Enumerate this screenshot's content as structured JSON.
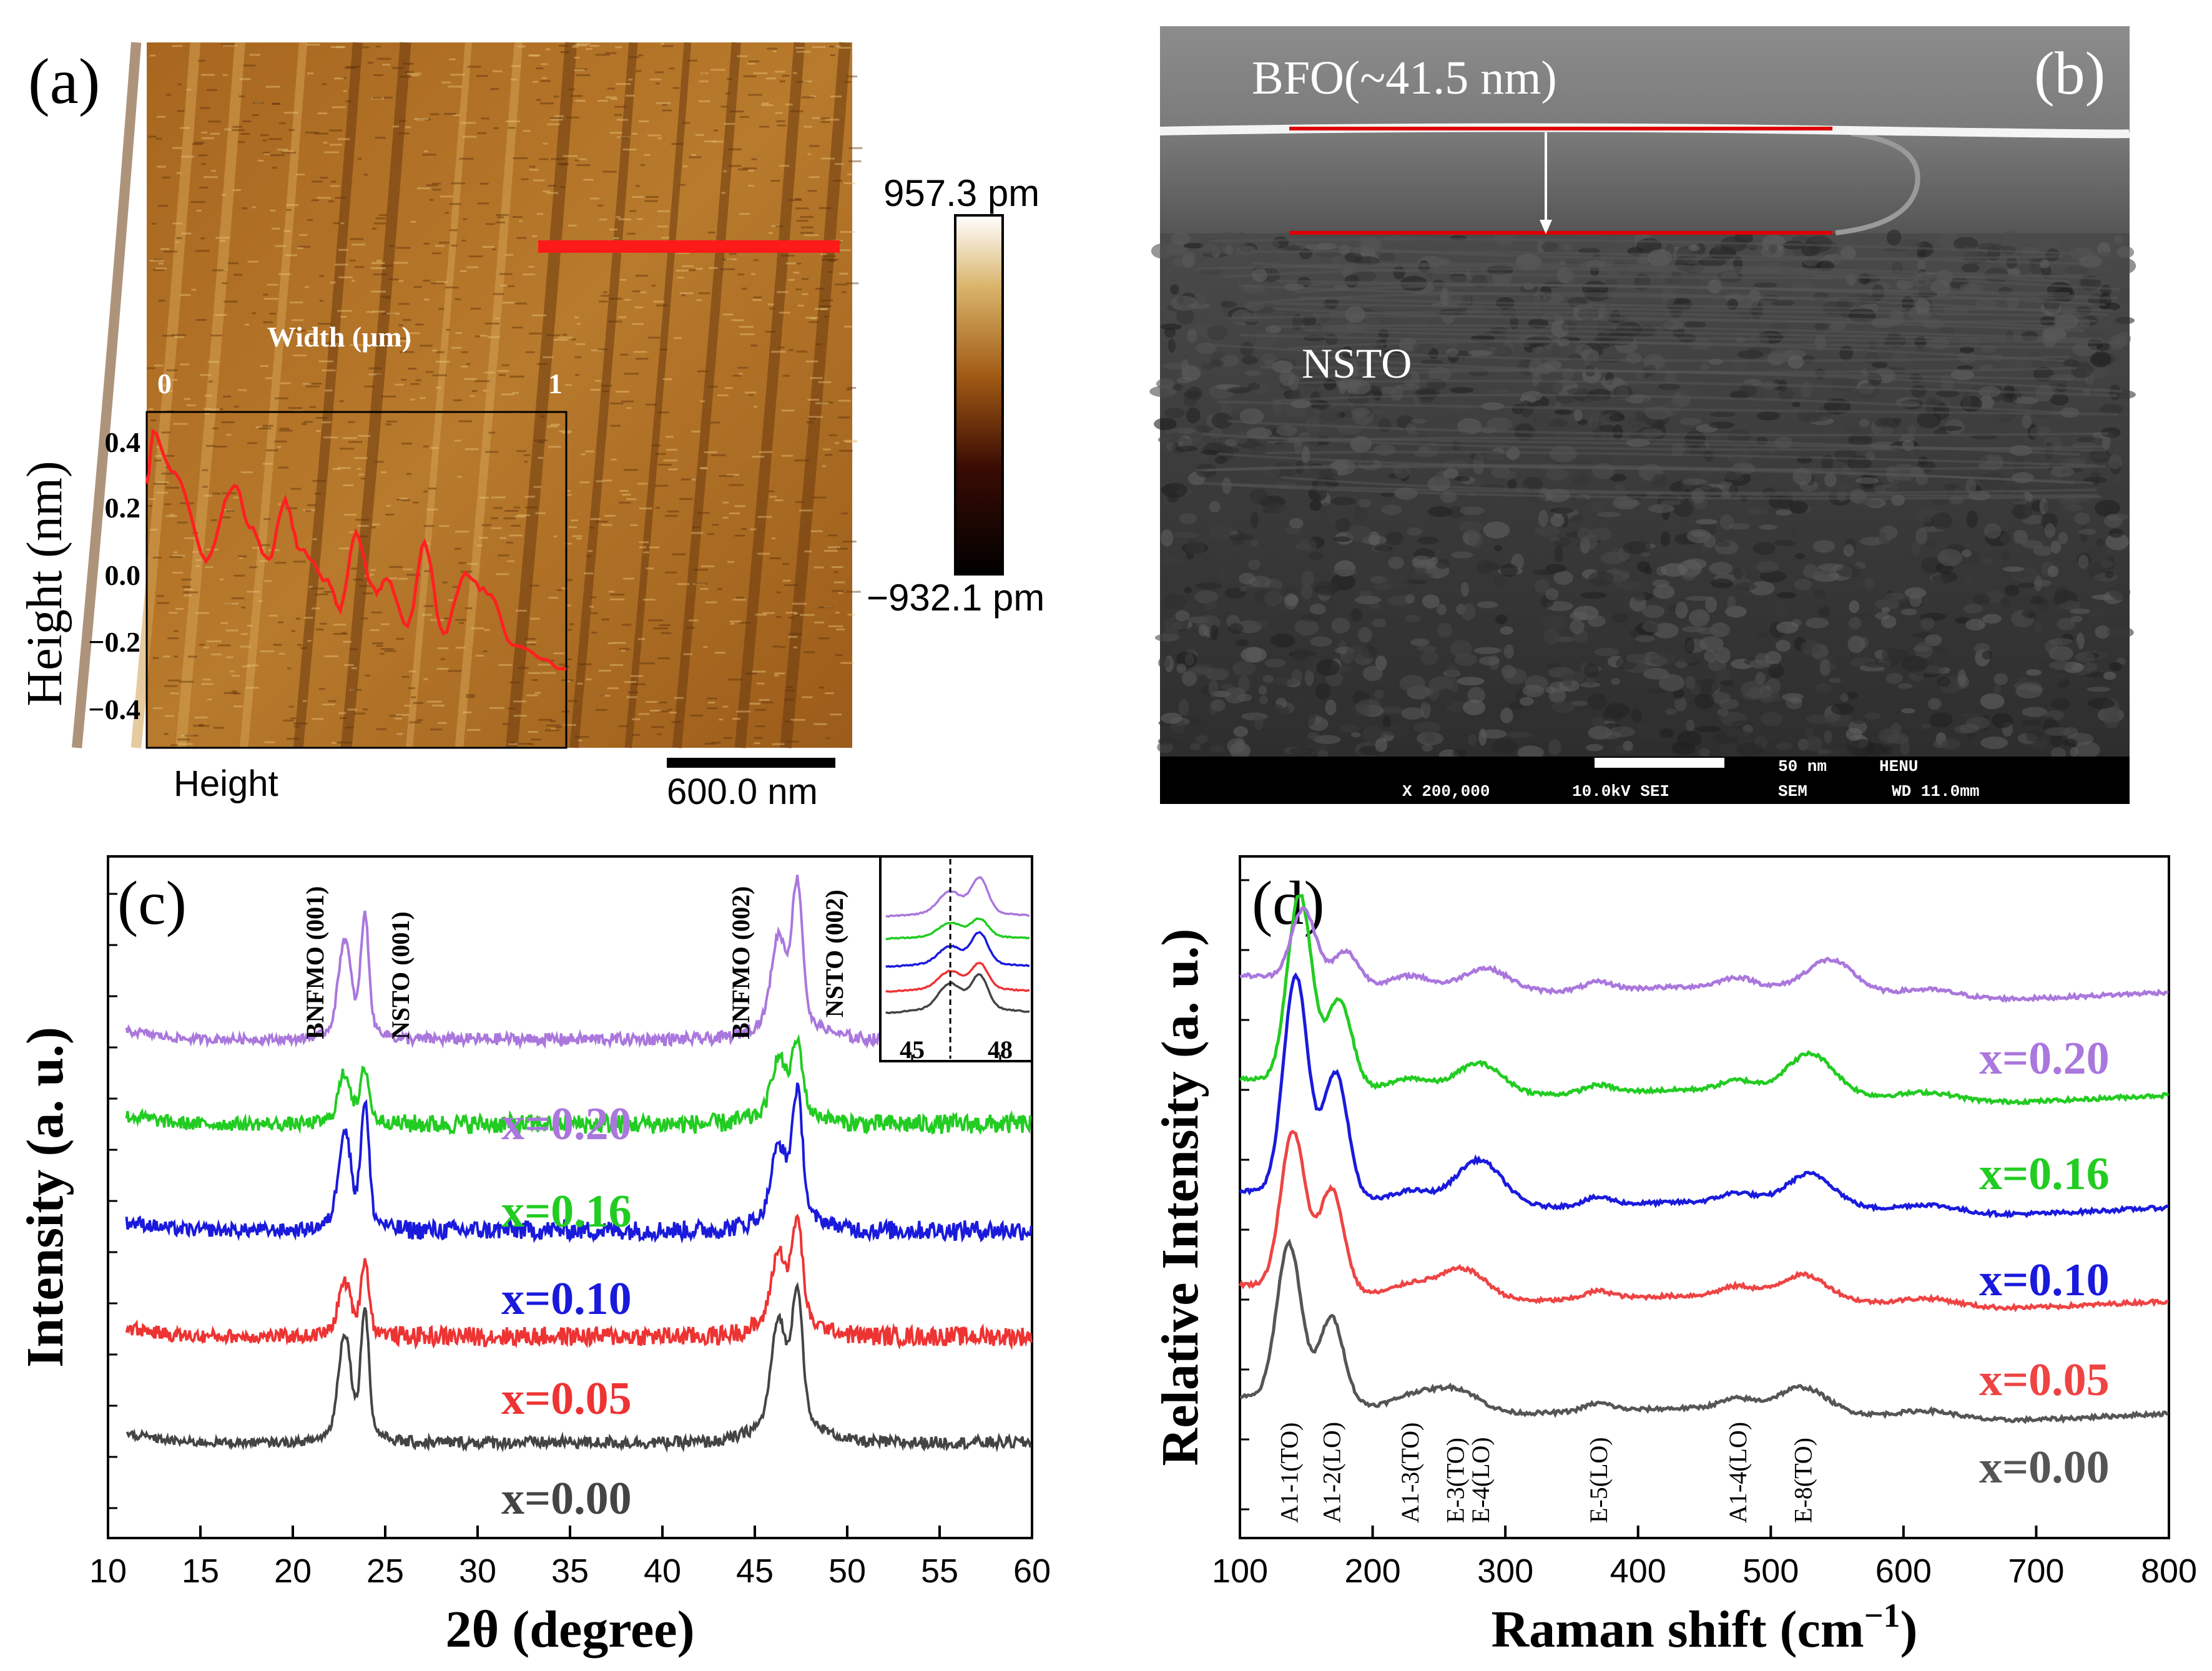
{
  "panel_a": {
    "label": "(a)",
    "width_label": "Width (μm)",
    "width_tick_0": "0",
    "width_tick_1": "1",
    "y_axis_title": "Height (nm)",
    "y_ticks": [
      "0.4",
      "0.2",
      "0.0",
      "−0.2",
      "−0.4"
    ],
    "colorbar_max": "957.3 pm",
    "colorbar_min": "−932.1 pm",
    "channel_label": "Height",
    "scalebar_label": "600.0 nm",
    "colors": {
      "profile": "#ff2020",
      "line_marker": "#ff1a1a"
    }
  },
  "panel_b": {
    "label": "(b)",
    "film_label": "BFO(~41.5 nm)",
    "substrate_label": "NSTO",
    "scale_text": "50 nm",
    "org_text": "HENU",
    "magnification": "X 200,000",
    "voltage": "10.0kV SEI",
    "mode": "SEM",
    "wd": "WD 11.0mm"
  },
  "chart_data": [
    {
      "type": "line",
      "panel": "(c)",
      "xlabel": "2θ (degree)",
      "ylabel": "Intensity (a. u.)",
      "xlim": [
        10,
        60
      ],
      "x_ticks": [
        "10",
        "15",
        "20",
        "25",
        "30",
        "35",
        "40",
        "45",
        "50",
        "55",
        "60"
      ],
      "peak_labels": [
        "BNFMO (001)",
        "NSTO (001)",
        "BNFMO (002)",
        "NSTO (002)"
      ],
      "peak_positions": [
        22.8,
        23.9,
        46.3,
        47.3
      ],
      "inset": {
        "x_ticks": [
          "45",
          "48"
        ],
        "dashed_line_x": 46.3
      },
      "series": [
        {
          "name": "x=0.00",
          "color": "#444444",
          "baseline": 0.0,
          "peak_heights": [
            0.6,
            0.78,
            0.65,
            0.85
          ]
        },
        {
          "name": "x=0.05",
          "color": "#ee3333",
          "baseline": 1.0,
          "peak_heights": [
            0.3,
            0.45,
            0.45,
            0.65
          ]
        },
        {
          "name": "x=0.10",
          "color": "#1a1adc",
          "baseline": 2.0,
          "peak_heights": [
            0.55,
            0.75,
            0.45,
            0.8
          ]
        },
        {
          "name": "x=0.16",
          "color": "#22cc22",
          "baseline": 3.0,
          "peak_heights": [
            0.28,
            0.32,
            0.35,
            0.45
          ]
        },
        {
          "name": "x=0.20",
          "color": "#aa77dd",
          "baseline": 3.8,
          "peak_heights": [
            0.55,
            0.72,
            0.55,
            0.9
          ]
        }
      ]
    },
    {
      "type": "line",
      "panel": "(d)",
      "xlabel": "Raman shift (cm",
      "xlabel_sup": "−1",
      "xlabel_end": ")",
      "ylabel": "Relative Intensity (a. u.)",
      "xlim": [
        100,
        800
      ],
      "x_ticks": [
        "100",
        "200",
        "300",
        "400",
        "500",
        "600",
        "700",
        "800"
      ],
      "mode_labels": [
        "A1-1(TO)",
        "A1-2(LO)",
        "A1-3(TO)",
        "E-3(TO)",
        "E-4(LO)",
        "E-5(LO)",
        "A1-4(LO)",
        "E-8(TO)"
      ],
      "mode_positions": [
        137,
        169,
        228,
        262,
        281,
        370,
        475,
        524
      ],
      "series": [
        {
          "name": "x=0.00",
          "color": "#555555",
          "baseline": 0.0,
          "peaks": [
            [
              137,
              1.0
            ],
            [
              169,
              0.55
            ],
            [
              262,
              0.15
            ],
            [
              524,
              0.15
            ]
          ]
        },
        {
          "name": "x=0.05",
          "color": "#ee4444",
          "baseline": 0.6,
          "peaks": [
            [
              140,
              1.0
            ],
            [
              169,
              0.65
            ],
            [
              268,
              0.2
            ],
            [
              525,
              0.15
            ]
          ]
        },
        {
          "name": "x=0.10",
          "color": "#1a1add",
          "baseline": 1.1,
          "peaks": [
            [
              142,
              1.4
            ],
            [
              172,
              0.8
            ],
            [
              280,
              0.3
            ],
            [
              530,
              0.2
            ]
          ]
        },
        {
          "name": "x=0.16",
          "color": "#22cc22",
          "baseline": 1.7,
          "peaks": [
            [
              145,
              1.2
            ],
            [
              175,
              0.55
            ],
            [
              280,
              0.2
            ],
            [
              530,
              0.25
            ]
          ]
        },
        {
          "name": "x=0.20",
          "color": "#aa77dd",
          "baseline": 2.25,
          "peaks": [
            [
              148,
              0.45
            ],
            [
              180,
              0.2
            ],
            [
              285,
              0.15
            ],
            [
              545,
              0.2
            ]
          ]
        }
      ]
    }
  ]
}
